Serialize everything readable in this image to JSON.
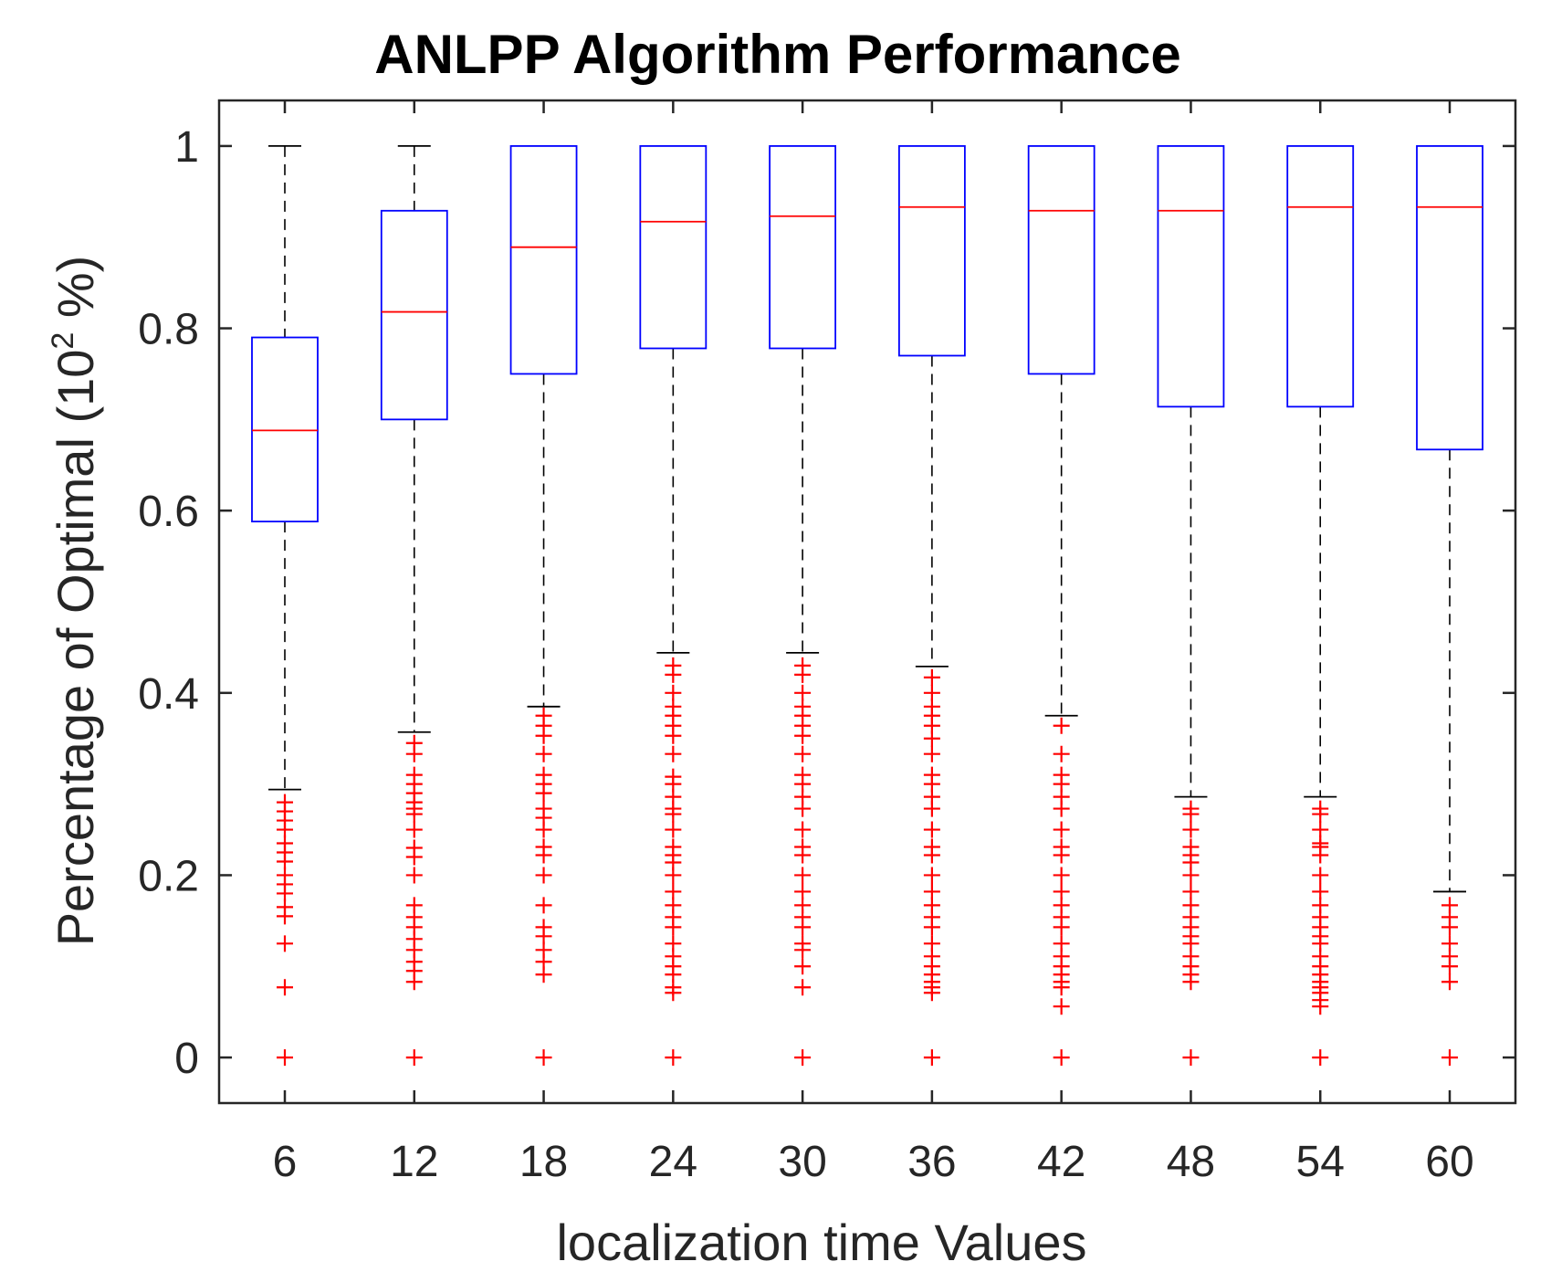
{
  "chart_data": {
    "type": "boxplot",
    "title": "ANLPP Algorithm Performance",
    "xlabel": "localization time Values",
    "ylabel": {
      "prefix": "Percentage of Optimal (10",
      "superscript": "2",
      "suffix": " %)"
    },
    "ylim": [
      -0.05,
      1.05
    ],
    "yticks": [
      0,
      0.2,
      0.4,
      0.6,
      0.8,
      1
    ],
    "ytick_labels": [
      "0",
      "0.2",
      "0.4",
      "0.6",
      "0.8",
      "1"
    ],
    "categories": [
      "6",
      "12",
      "18",
      "24",
      "30",
      "36",
      "42",
      "48",
      "54",
      "60"
    ],
    "boxes": [
      {
        "q1": 0.588,
        "median": 0.688,
        "q3": 0.79,
        "whisker_low": 0.294,
        "whisker_high": 1.0,
        "outliers": [
          0.28,
          0.27,
          0.26,
          0.25,
          0.235,
          0.225,
          0.215,
          0.2,
          0.19,
          0.18,
          0.165,
          0.155,
          0.125,
          0.077,
          0
        ]
      },
      {
        "q1": 0.7,
        "median": 0.818,
        "q3": 0.929,
        "whisker_low": 0.357,
        "whisker_high": 1.0,
        "outliers": [
          0.345,
          0.333,
          0.31,
          0.3,
          0.29,
          0.28,
          0.273,
          0.267,
          0.25,
          0.23,
          0.22,
          0.2,
          0.167,
          0.154,
          0.143,
          0.13,
          0.118,
          0.105,
          0.095,
          0.083,
          0
        ]
      },
      {
        "q1": 0.75,
        "median": 0.889,
        "q3": 1.0,
        "whisker_low": 0.385,
        "whisker_high": 1.0,
        "outliers": [
          0.375,
          0.364,
          0.353,
          0.333,
          0.31,
          0.3,
          0.29,
          0.273,
          0.263,
          0.25,
          0.231,
          0.222,
          0.2,
          0.167,
          0.143,
          0.133,
          0.118,
          0.105,
          0.091,
          0
        ]
      },
      {
        "q1": 0.778,
        "median": 0.917,
        "q3": 1.0,
        "whisker_low": 0.444,
        "whisker_high": 1.0,
        "outliers": [
          0.43,
          0.42,
          0.4,
          0.385,
          0.375,
          0.364,
          0.353,
          0.333,
          0.308,
          0.3,
          0.286,
          0.273,
          0.267,
          0.25,
          0.231,
          0.222,
          0.214,
          0.2,
          0.182,
          0.167,
          0.154,
          0.143,
          0.125,
          0.111,
          0.1,
          0.091,
          0.077,
          0.071,
          0
        ]
      },
      {
        "q1": 0.778,
        "median": 0.923,
        "q3": 1.0,
        "whisker_low": 0.444,
        "whisker_high": 1.0,
        "outliers": [
          0.43,
          0.42,
          0.4,
          0.385,
          0.375,
          0.364,
          0.353,
          0.333,
          0.31,
          0.3,
          0.286,
          0.273,
          0.25,
          0.231,
          0.222,
          0.2,
          0.182,
          0.167,
          0.154,
          0.143,
          0.125,
          0.118,
          0.1,
          0.077,
          0
        ]
      },
      {
        "q1": 0.77,
        "median": 0.933,
        "q3": 1.0,
        "whisker_low": 0.429,
        "whisker_high": 1.0,
        "outliers": [
          0.417,
          0.4,
          0.385,
          0.375,
          0.364,
          0.35,
          0.333,
          0.31,
          0.3,
          0.286,
          0.273,
          0.25,
          0.231,
          0.222,
          0.2,
          0.182,
          0.167,
          0.154,
          0.143,
          0.125,
          0.111,
          0.1,
          0.091,
          0.083,
          0.077,
          0.071,
          0
        ]
      },
      {
        "q1": 0.75,
        "median": 0.929,
        "q3": 1.0,
        "whisker_low": 0.375,
        "whisker_high": 1.0,
        "outliers": [
          0.364,
          0.333,
          0.31,
          0.3,
          0.286,
          0.273,
          0.25,
          0.231,
          0.222,
          0.2,
          0.182,
          0.167,
          0.154,
          0.143,
          0.125,
          0.111,
          0.1,
          0.091,
          0.083,
          0.077,
          0.056,
          0
        ]
      },
      {
        "q1": 0.714,
        "median": 0.929,
        "q3": 1.0,
        "whisker_low": 0.286,
        "whisker_high": 1.0,
        "outliers": [
          0.273,
          0.267,
          0.25,
          0.231,
          0.222,
          0.214,
          0.2,
          0.182,
          0.167,
          0.154,
          0.143,
          0.133,
          0.125,
          0.111,
          0.1,
          0.091,
          0.083,
          0
        ]
      },
      {
        "q1": 0.714,
        "median": 0.933,
        "q3": 1.0,
        "whisker_low": 0.286,
        "whisker_high": 1.0,
        "outliers": [
          0.273,
          0.267,
          0.25,
          0.235,
          0.231,
          0.222,
          0.2,
          0.182,
          0.167,
          0.154,
          0.143,
          0.133,
          0.125,
          0.111,
          0.1,
          0.091,
          0.083,
          0.077,
          0.071,
          0.063,
          0.056,
          0
        ]
      },
      {
        "q1": 0.667,
        "median": 0.933,
        "q3": 1.0,
        "whisker_low": 0.182,
        "whisker_high": 1.0,
        "outliers": [
          0.167,
          0.154,
          0.143,
          0.125,
          0.111,
          0.1,
          0.083,
          0
        ]
      }
    ]
  }
}
